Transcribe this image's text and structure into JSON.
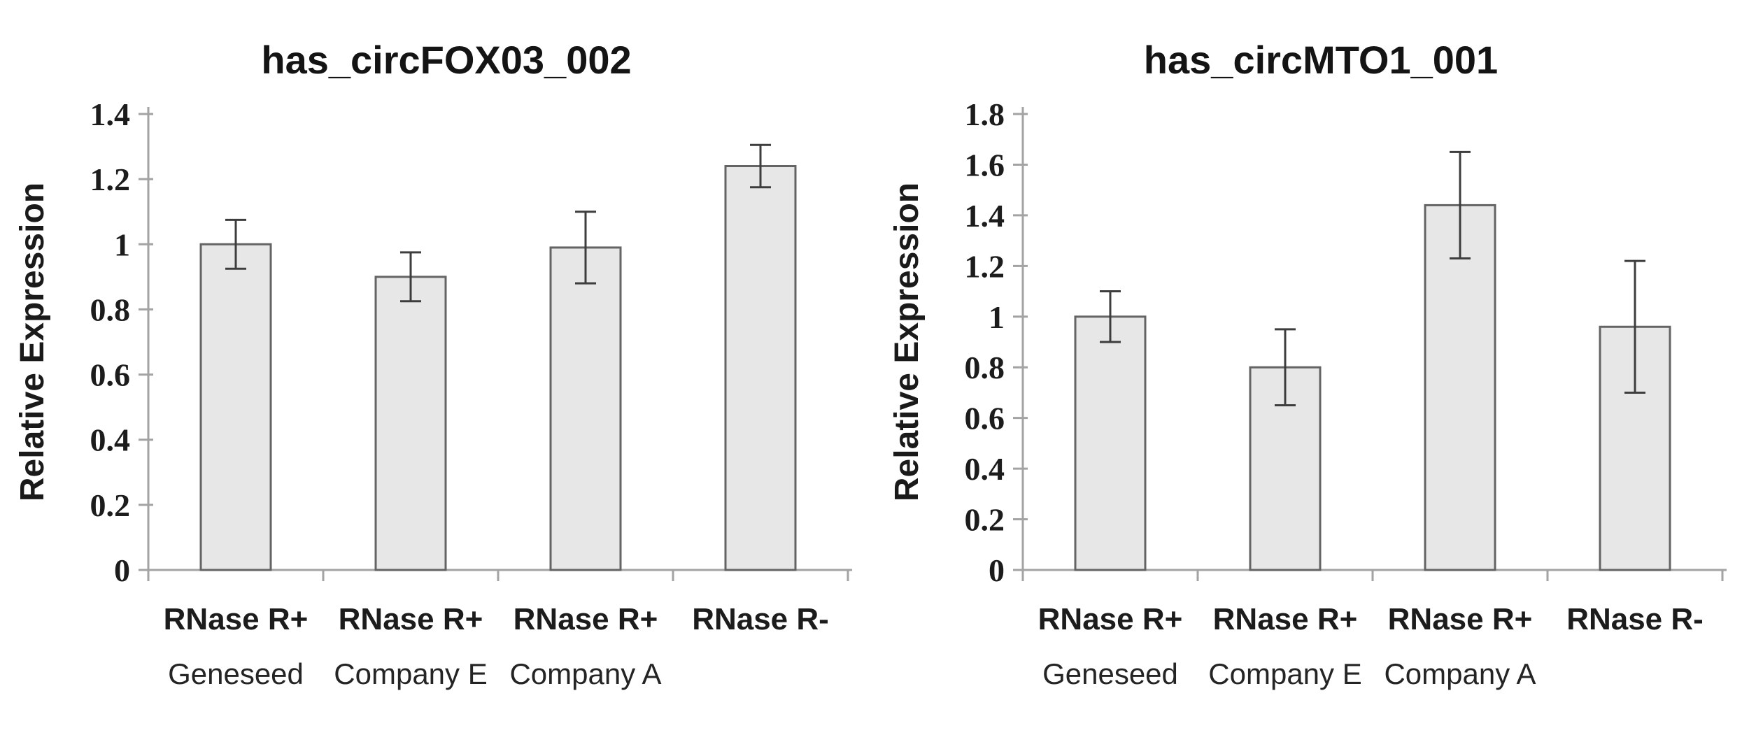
{
  "figure": {
    "background": "#ffffff",
    "description_left_panel_title": "has_circFOX03_002",
    "description_right_panel_title": "has_circMTO1_001"
  },
  "chart_data": [
    {
      "type": "bar",
      "title": "has_circFOX03_002",
      "ylabel": "Relative Expression",
      "xlabel": "",
      "ylim": [
        0,
        1.4
      ],
      "ytick_step": 0.2,
      "ytick_labels": [
        "0",
        "0.2",
        "0.4",
        "0.6",
        "0.8",
        "1",
        "1.2",
        "1.4"
      ],
      "categories": [
        {
          "label": "RNase R+",
          "sublabel": "Geneseed"
        },
        {
          "label": "RNase R+",
          "sublabel": "Company E"
        },
        {
          "label": "RNase R+",
          "sublabel": "Company A"
        },
        {
          "label": "RNase R-",
          "sublabel": ""
        }
      ],
      "values": [
        1.0,
        0.9,
        0.99,
        1.24
      ],
      "errors": [
        0.075,
        0.075,
        0.11,
        0.065
      ],
      "grid": false,
      "legend": null,
      "colors": {
        "bar_fill": "#e7e7e7",
        "bar_stroke": "#646464",
        "axis": "#a3a3a3",
        "error": "#3d3d3d",
        "text": "#1c1c1c"
      }
    },
    {
      "type": "bar",
      "title": "has_circMTO1_001",
      "ylabel": "Relative Expression",
      "xlabel": "",
      "ylim": [
        0,
        1.8
      ],
      "ytick_step": 0.2,
      "ytick_labels": [
        "0",
        "0.2",
        "0.4",
        "0.6",
        "0.8",
        "1",
        "1.2",
        "1.4",
        "1.6",
        "1.8"
      ],
      "categories": [
        {
          "label": "RNase R+",
          "sublabel": "Geneseed"
        },
        {
          "label": "RNase R+",
          "sublabel": "Company E"
        },
        {
          "label": "RNase R+",
          "sublabel": "Company A"
        },
        {
          "label": "RNase R-",
          "sublabel": ""
        }
      ],
      "values": [
        1.0,
        0.8,
        1.44,
        0.96
      ],
      "errors": [
        0.1,
        0.15,
        0.21,
        0.26
      ],
      "grid": false,
      "legend": null,
      "colors": {
        "bar_fill": "#e7e7e7",
        "bar_stroke": "#646464",
        "axis": "#a3a3a3",
        "error": "#3d3d3d",
        "text": "#1c1c1c"
      }
    }
  ]
}
